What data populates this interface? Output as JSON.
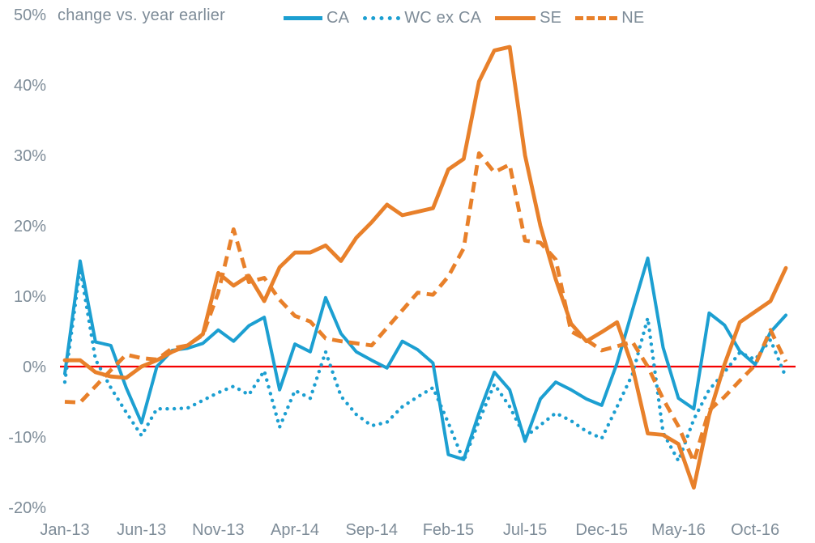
{
  "annotation": {
    "subtitle": "change vs. year earlier"
  },
  "colors": {
    "blue": "#1C9FD1",
    "orange": "#E8802A",
    "zero_line_red": "#F40000",
    "axis_text": "#7E8C98"
  },
  "chart_data": {
    "type": "line",
    "title": "",
    "subtitle": "change vs. year earlier",
    "xlabel": "",
    "ylabel": "% change vs. year earlier",
    "ylim": [
      -20,
      50
    ],
    "grid": false,
    "legend_position": "top",
    "zero_line": 0,
    "x": [
      "Jan-13",
      "Feb-13",
      "Mar-13",
      "Apr-13",
      "May-13",
      "Jun-13",
      "Jul-13",
      "Aug-13",
      "Sep-13",
      "Oct-13",
      "Nov-13",
      "Dec-13",
      "Jan-14",
      "Feb-14",
      "Mar-14",
      "Apr-14",
      "May-14",
      "Jun-14",
      "Jul-14",
      "Aug-14",
      "Sep-14",
      "Oct-14",
      "Nov-14",
      "Dec-14",
      "Jan-15",
      "Feb-15",
      "Mar-15",
      "Apr-15",
      "May-15",
      "Jun-15",
      "Jul-15",
      "Aug-15",
      "Sep-15",
      "Oct-15",
      "Nov-15",
      "Dec-15",
      "Jan-16",
      "Feb-16",
      "Mar-16",
      "Apr-16",
      "May-16",
      "Jun-16",
      "Jul-16",
      "Aug-16",
      "Sep-16",
      "Oct-16",
      "Nov-16",
      "Dec-16"
    ],
    "x_tick_indices": [
      0,
      5,
      10,
      15,
      20,
      25,
      30,
      35,
      40,
      45
    ],
    "x_tick_labels": [
      "Jan-13",
      "Jun-13",
      "Nov-13",
      "Apr-14",
      "Sep-14",
      "Feb-15",
      "Jul-15",
      "Dec-15",
      "May-16",
      "Oct-16"
    ],
    "y_ticks": [
      {
        "value": 50,
        "label": "50%"
      },
      {
        "value": 40,
        "label": "40%"
      },
      {
        "value": 30,
        "label": "30%"
      },
      {
        "value": 20,
        "label": "20%"
      },
      {
        "value": 10,
        "label": "10%"
      },
      {
        "value": 0,
        "label": "0%"
      },
      {
        "value": -10,
        "label": "-10%"
      },
      {
        "value": -20,
        "label": "-20%"
      }
    ],
    "series": [
      {
        "name": "CA",
        "color": "#1C9FD1",
        "style": "solid",
        "stroke_width": 4,
        "values": [
          -1.0,
          15.0,
          3.5,
          3.0,
          -3.0,
          -8.0,
          0.0,
          2.3,
          2.6,
          3.3,
          5.2,
          3.6,
          5.8,
          7.0,
          -3.3,
          3.2,
          2.1,
          9.8,
          4.7,
          2.1,
          0.9,
          -0.2,
          3.6,
          2.4,
          0.5,
          -12.5,
          -13.2,
          -6.6,
          -0.8,
          -3.3,
          -10.6,
          -4.6,
          -2.2,
          -3.3,
          -4.6,
          -5.5,
          0.5,
          8.0,
          15.4,
          2.7,
          -4.5,
          -6.0,
          7.6,
          5.9,
          2.2,
          0.3,
          4.9,
          7.3
        ]
      },
      {
        "name": "WC ex CA",
        "color": "#1C9FD1",
        "style": "dotted",
        "stroke_width": 4.4,
        "values": [
          -2.2,
          14.0,
          1.0,
          -3.0,
          -6.5,
          -9.8,
          -6.0,
          -6.0,
          -5.9,
          -4.8,
          -3.7,
          -2.8,
          -4.0,
          -0.6,
          -8.6,
          -3.4,
          -4.5,
          2.1,
          -4.2,
          -6.8,
          -8.4,
          -7.9,
          -5.7,
          -4.3,
          -3.0,
          -8.0,
          -13.4,
          -7.7,
          -2.5,
          -5.7,
          -10.0,
          -8.3,
          -6.6,
          -7.7,
          -9.2,
          -10.2,
          -5.7,
          -1.1,
          6.9,
          -9.4,
          -13.4,
          -7.5,
          -3.3,
          -0.8,
          2.0,
          1.0,
          3.8,
          -1.5
        ]
      },
      {
        "name": "SE",
        "color": "#E8802A",
        "style": "solid",
        "stroke_width": 4.8,
        "values": [
          0.9,
          0.9,
          -0.8,
          -1.4,
          -1.6,
          0.0,
          0.9,
          2.1,
          3.0,
          4.6,
          13.3,
          11.5,
          12.9,
          9.3,
          14.1,
          16.2,
          16.2,
          17.2,
          15.0,
          18.3,
          20.5,
          23.0,
          21.5,
          22.0,
          22.5,
          28.0,
          29.5,
          40.5,
          44.9,
          45.4,
          30.0,
          20.0,
          12.4,
          6.1,
          3.6,
          4.9,
          6.3,
          0.0,
          -9.5,
          -9.7,
          -11.0,
          -17.2,
          -6.9,
          0.3,
          6.3,
          7.8,
          9.3,
          14.0
        ]
      },
      {
        "name": "NE",
        "color": "#E8802A",
        "style": "dashed",
        "stroke_width": 4.8,
        "values": [
          -5.0,
          -5.1,
          -2.8,
          -0.5,
          1.7,
          1.2,
          1.0,
          2.6,
          3.0,
          4.5,
          10.5,
          19.5,
          12.0,
          12.6,
          9.5,
          7.2,
          6.4,
          4.0,
          3.6,
          3.3,
          3.0,
          5.5,
          8.0,
          10.5,
          10.2,
          12.8,
          16.8,
          30.3,
          27.6,
          28.7,
          17.9,
          17.6,
          15.2,
          5.0,
          3.8,
          2.3,
          2.9,
          3.5,
          0.0,
          -4.6,
          -8.5,
          -13.5,
          -6.2,
          -4.3,
          -2.0,
          0.2,
          5.2,
          0.7
        ]
      }
    ]
  }
}
